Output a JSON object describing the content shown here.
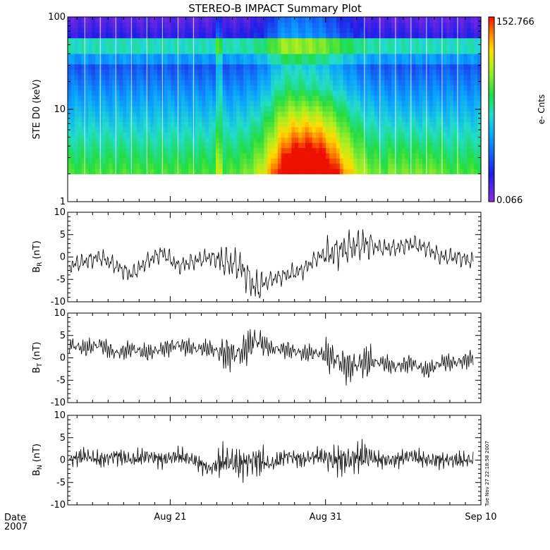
{
  "title": "STEREO-B IMPACT Summary Plot",
  "footer": {
    "date_label": "Date",
    "year_label": "2007"
  },
  "timestamp_stamp": "Tue Nov 27 22:18:58 2007",
  "colors": {
    "frame": "#000000",
    "trace": "#000000",
    "background": "#ffffff"
  },
  "chart_data": [
    {
      "type": "heatmap",
      "id": "spectrogram",
      "ylabel": "STE D0 (keV)",
      "yscale": "log",
      "ylim": [
        1,
        100
      ],
      "y_ticks": [
        1,
        10,
        100
      ],
      "y_tick_labels": [
        "1",
        "10",
        "100"
      ],
      "x_ticks": [
        "Aug 21",
        "Aug 31",
        "Sep 10"
      ],
      "xlim_days": [
        14.4,
        41.0
      ],
      "data_floor_kev": 2.0,
      "colorbar": {
        "label": "e- Cnts",
        "min": "0.066",
        "max": "152.766",
        "colormap": "rainbow"
      },
      "features": [
        {
          "name": "band-32-45keV",
          "energy_kev": [
            32,
            45
          ],
          "level": 0.55
        },
        {
          "name": "event-peak",
          "day_range": [
            27.5,
            32.5
          ],
          "energy_kev": [
            2,
            5
          ],
          "level": 1.0
        }
      ]
    },
    {
      "type": "line",
      "id": "BR",
      "ylabel": "B_R (nT)",
      "ylabel_main": "B",
      "ylabel_sub": "R",
      "ylabel_unit": "(nT)",
      "ylim": [
        -10,
        10
      ],
      "y_ticks": [
        -10,
        -5,
        0,
        5,
        10
      ],
      "x_days": [
        14.5,
        15.5,
        16.5,
        17.5,
        18.5,
        19.5,
        20.5,
        21.5,
        22.5,
        23.5,
        24.5,
        25.5,
        26.5,
        27.5,
        28.5,
        29.5,
        30.5,
        31.5,
        32.5,
        33.5,
        34.5,
        35.5,
        36.5,
        37.5,
        38.5,
        39.5,
        40.5
      ],
      "values": [
        -2,
        -1,
        0,
        -2,
        -4,
        -1,
        1,
        -2,
        -1,
        0,
        -1,
        -2,
        -7,
        -5,
        -4,
        -3,
        0,
        1,
        2,
        3,
        2,
        2,
        3,
        2,
        0,
        0,
        -1
      ]
    },
    {
      "type": "line",
      "id": "BT",
      "ylabel": "B_T (nT)",
      "ylabel_main": "B",
      "ylabel_sub": "T",
      "ylabel_unit": "(nT)",
      "ylim": [
        -10,
        10
      ],
      "y_ticks": [
        -10,
        -5,
        0,
        5,
        10
      ],
      "x_days": [
        14.5,
        15.5,
        16.5,
        17.5,
        18.5,
        19.5,
        20.5,
        21.5,
        22.5,
        23.5,
        24.5,
        25.5,
        26.5,
        27.5,
        28.5,
        29.5,
        30.5,
        31.5,
        32.5,
        33.5,
        34.5,
        35.5,
        36.5,
        37.5,
        38.5,
        39.5,
        40.5
      ],
      "values": [
        3,
        2,
        3,
        1,
        2,
        1,
        2,
        3,
        2,
        2,
        1,
        1,
        4,
        2,
        2,
        1,
        1,
        0,
        -2,
        -1,
        -1,
        -2,
        -1,
        -3,
        -1,
        -1,
        0
      ]
    },
    {
      "type": "line",
      "id": "BN",
      "ylabel": "B_N (nT)",
      "ylabel_main": "B",
      "ylabel_sub": "N",
      "ylabel_unit": "(nT)",
      "ylim": [
        -10,
        10
      ],
      "y_ticks": [
        -10,
        -5,
        0,
        5,
        10
      ],
      "x_days": [
        14.5,
        15.5,
        16.5,
        17.5,
        18.5,
        19.5,
        20.5,
        21.5,
        22.5,
        23.5,
        24.5,
        25.5,
        26.5,
        27.5,
        28.5,
        29.5,
        30.5,
        31.5,
        32.5,
        33.5,
        34.5,
        35.5,
        36.5,
        37.5,
        38.5,
        39.5,
        40.5
      ],
      "values": [
        0,
        1,
        0,
        1,
        0,
        1,
        0,
        1,
        0,
        -2,
        0,
        -1,
        0,
        -1,
        1,
        0,
        1,
        0,
        0,
        1,
        0,
        0,
        1,
        0,
        0,
        0,
        0
      ]
    }
  ]
}
